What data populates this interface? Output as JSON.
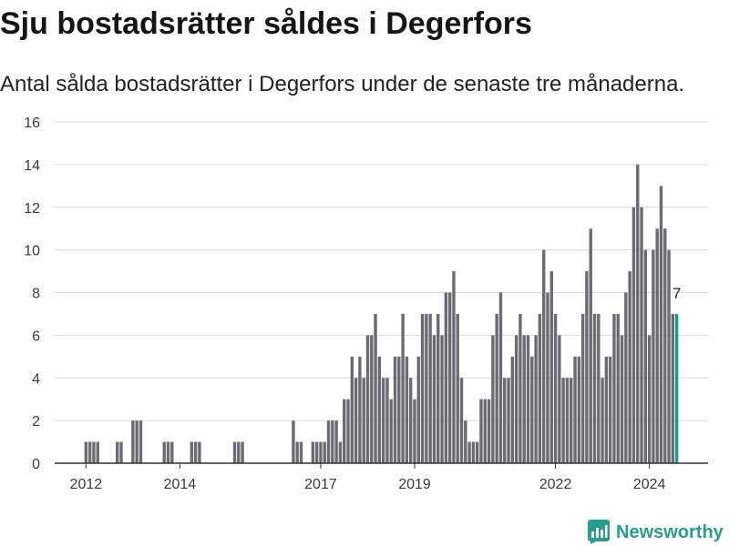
{
  "chart_data": {
    "type": "bar",
    "title": "Sju bostadsrätter såldes i Degerfors",
    "subtitle": "Antal sålda bostadsrätter i Degerfors under de senaste tre månaderna.",
    "x": [
      "2012-01",
      "2012-02",
      "2012-03",
      "2012-04",
      "2012-05",
      "2012-06",
      "2012-07",
      "2012-08",
      "2012-09",
      "2012-10",
      "2012-11",
      "2012-12",
      "2013-01",
      "2013-02",
      "2013-03",
      "2013-04",
      "2013-05",
      "2013-06",
      "2013-07",
      "2013-08",
      "2013-09",
      "2013-10",
      "2013-11",
      "2013-12",
      "2014-01",
      "2014-02",
      "2014-03",
      "2014-04",
      "2014-05",
      "2014-06",
      "2014-07",
      "2014-08",
      "2014-09",
      "2014-10",
      "2014-11",
      "2014-12",
      "2015-01",
      "2015-02",
      "2015-03",
      "2015-04",
      "2015-05",
      "2015-06",
      "2015-07",
      "2015-08",
      "2015-09",
      "2015-10",
      "2015-11",
      "2015-12",
      "2016-01",
      "2016-02",
      "2016-03",
      "2016-04",
      "2016-05",
      "2016-06",
      "2016-07",
      "2016-08",
      "2016-09",
      "2016-10",
      "2016-11",
      "2016-12",
      "2017-01",
      "2017-02",
      "2017-03",
      "2017-04",
      "2017-05",
      "2017-06",
      "2017-07",
      "2017-08",
      "2017-09",
      "2017-10",
      "2017-11",
      "2017-12",
      "2018-01",
      "2018-02",
      "2018-03",
      "2018-04",
      "2018-05",
      "2018-06",
      "2018-07",
      "2018-08",
      "2018-09",
      "2018-10",
      "2018-11",
      "2018-12",
      "2019-01",
      "2019-02",
      "2019-03",
      "2019-04",
      "2019-05",
      "2019-06",
      "2019-07",
      "2019-08",
      "2019-09",
      "2019-10",
      "2019-11",
      "2019-12",
      "2020-01",
      "2020-02",
      "2020-03",
      "2020-04",
      "2020-05",
      "2020-06",
      "2020-07",
      "2020-08",
      "2020-09",
      "2020-10",
      "2020-11",
      "2020-12",
      "2021-01",
      "2021-02",
      "2021-03",
      "2021-04",
      "2021-05",
      "2021-06",
      "2021-07",
      "2021-08",
      "2021-09",
      "2021-10",
      "2021-11",
      "2021-12",
      "2022-01",
      "2022-02",
      "2022-03",
      "2022-04",
      "2022-05",
      "2022-06",
      "2022-07",
      "2022-08",
      "2022-09",
      "2022-10",
      "2022-11",
      "2022-12",
      "2023-01",
      "2023-02",
      "2023-03",
      "2023-04",
      "2023-05",
      "2023-06",
      "2023-07",
      "2023-08",
      "2023-09",
      "2023-10",
      "2023-11",
      "2023-12",
      "2024-01",
      "2024-02",
      "2024-03",
      "2024-04",
      "2024-05",
      "2024-06",
      "2024-07",
      "2024-08"
    ],
    "values": [
      1,
      1,
      1,
      1,
      0,
      0,
      0,
      0,
      1,
      1,
      0,
      0,
      2,
      2,
      2,
      0,
      0,
      0,
      0,
      0,
      1,
      1,
      1,
      0,
      0,
      0,
      0,
      1,
      1,
      1,
      0,
      0,
      0,
      0,
      0,
      0,
      0,
      0,
      1,
      1,
      1,
      0,
      0,
      0,
      0,
      0,
      0,
      0,
      0,
      0,
      0,
      0,
      0,
      2,
      1,
      1,
      0,
      0,
      1,
      1,
      1,
      1,
      2,
      2,
      2,
      1,
      3,
      3,
      5,
      4,
      5,
      4,
      6,
      6,
      7,
      5,
      4,
      4,
      3,
      5,
      5,
      7,
      5,
      4,
      3,
      5,
      7,
      7,
      7,
      6,
      7,
      6,
      8,
      8,
      9,
      7,
      4,
      2,
      1,
      1,
      1,
      3,
      3,
      3,
      6,
      7,
      8,
      4,
      4,
      5,
      6,
      7,
      6,
      6,
      5,
      6,
      7,
      10,
      8,
      9,
      7,
      6,
      4,
      4,
      4,
      5,
      5,
      7,
      9,
      11,
      7,
      7,
      4,
      5,
      5,
      7,
      7,
      6,
      8,
      9,
      12,
      14,
      12,
      10,
      6,
      10,
      11,
      13,
      11,
      10,
      7,
      7
    ],
    "xtick_labels": [
      "2012",
      "2014",
      "2017",
      "2019",
      "2022",
      "2024"
    ],
    "yticks": [
      0,
      2,
      4,
      6,
      8,
      10,
      12,
      14,
      16
    ],
    "ylim": [
      0,
      16
    ],
    "xlim": [
      "2011-05",
      "2025-04"
    ],
    "grid": true,
    "highlight": {
      "x": "2024-08"
    },
    "data_labels": [
      {
        "x": "2024-08",
        "text": "7"
      }
    ],
    "colors": {
      "bar": "#6c6b72",
      "highlight": "#1a9c8d",
      "gridline": "#dadada",
      "axis": "#333333"
    }
  },
  "brand": {
    "name": "Newsworthy",
    "icon": "newsworthy-logo-icon",
    "color": "#2a9c8e"
  }
}
